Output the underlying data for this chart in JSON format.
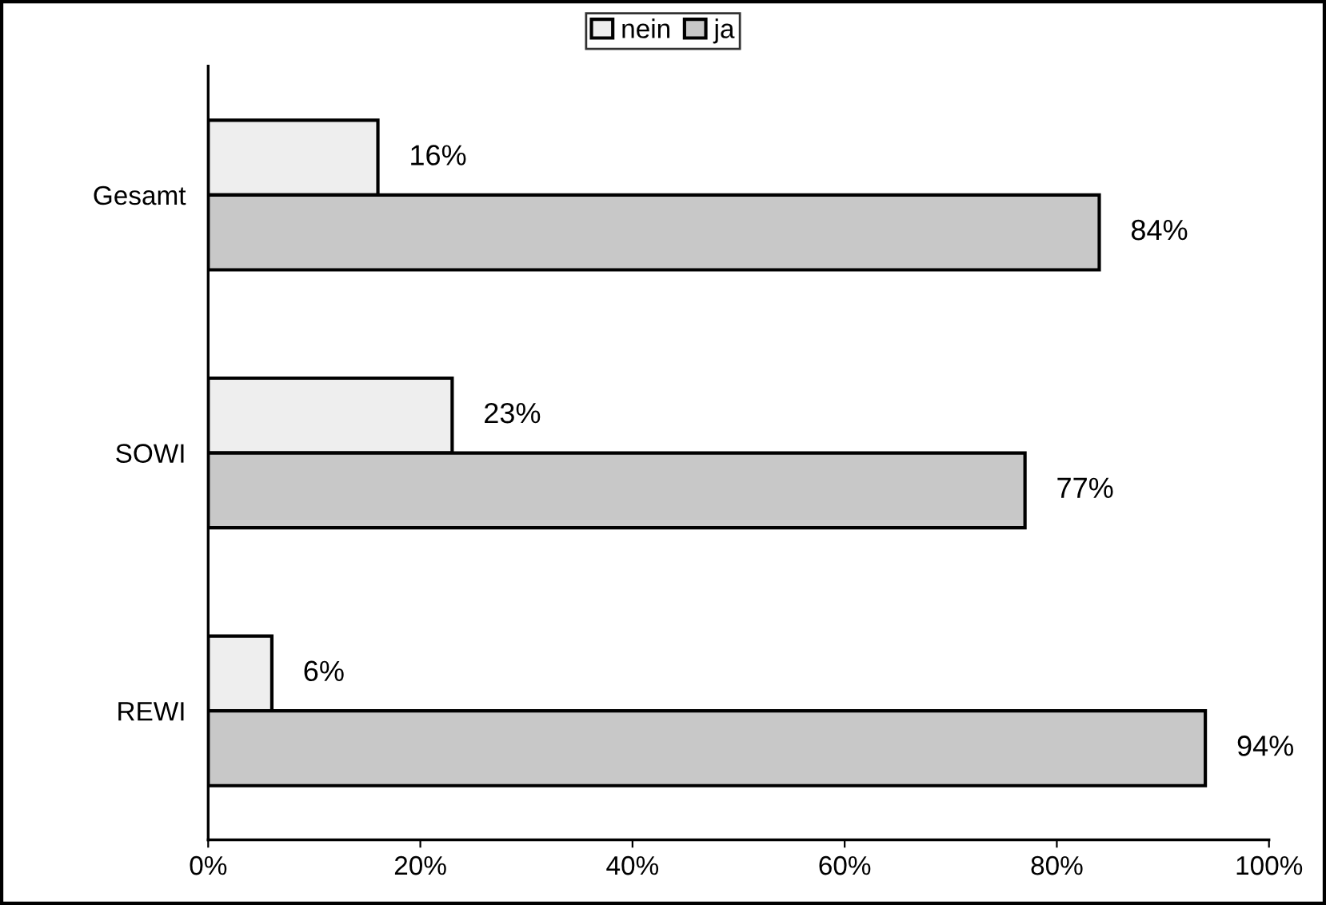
{
  "chart_data": {
    "type": "bar",
    "orientation": "horizontal",
    "categories": [
      "Gesamt",
      "SOWI",
      "REWI"
    ],
    "series": [
      {
        "name": "nein",
        "color": "#eeeeee",
        "values": [
          16,
          23,
          6
        ],
        "value_labels": [
          "16%",
          "23%",
          "6%"
        ]
      },
      {
        "name": "ja",
        "color": "#c8c8c8",
        "values": [
          84,
          77,
          94
        ],
        "value_labels": [
          "84%",
          "77%",
          "94%"
        ]
      }
    ],
    "xlim": [
      0,
      100
    ],
    "xticks": [
      {
        "value": 0,
        "label": "0%"
      },
      {
        "value": 20,
        "label": "20%"
      },
      {
        "value": 40,
        "label": "40%"
      },
      {
        "value": 60,
        "label": "60%"
      },
      {
        "value": 80,
        "label": "80%"
      },
      {
        "value": 100,
        "label": "100%"
      }
    ],
    "grid": false,
    "legend": "top"
  }
}
